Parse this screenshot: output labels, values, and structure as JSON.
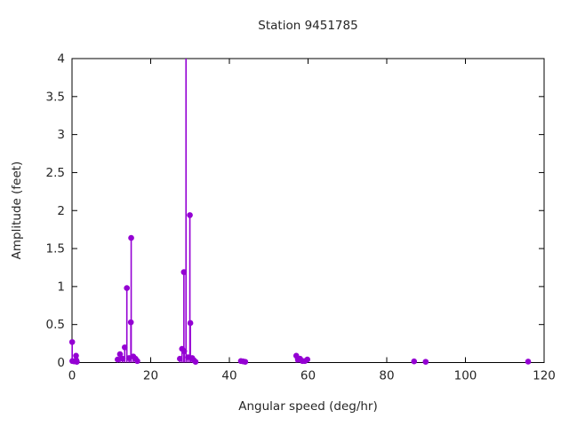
{
  "chart_data": {
    "type": "scatter",
    "style": "impulses-with-points",
    "title": "Station 9451785",
    "xlabel": "Angular speed (deg/hr)",
    "ylabel": "Amplitude (feet)",
    "xlim": [
      0,
      120
    ],
    "ylim": [
      0,
      4
    ],
    "xticks": {
      "values": [
        0,
        20,
        40,
        60,
        80,
        100,
        120
      ],
      "labels": [
        "0",
        "20",
        "40",
        "60",
        "80",
        "100",
        "120"
      ]
    },
    "yticks": {
      "values": [
        0,
        0.5,
        1,
        1.5,
        2,
        2.5,
        3,
        3.5,
        4
      ],
      "labels": [
        "0",
        "0.5",
        "1",
        "1.5",
        "2",
        "2.5",
        "3",
        "3.5",
        "4"
      ]
    },
    "grid": false,
    "legend": "none",
    "colors": {
      "marker": "#9400d3",
      "axis": "#000000",
      "text": "#262626"
    },
    "points": [
      {
        "x": 0.04,
        "y": 0.27
      },
      {
        "x": 0.08,
        "y": 0.02
      },
      {
        "x": 0.54,
        "y": 0.015
      },
      {
        "x": 1.02,
        "y": 0.09
      },
      {
        "x": 1.1,
        "y": 0.03
      },
      {
        "x": 1.22,
        "y": 0.01
      },
      {
        "x": 11.6,
        "y": 0.04
      },
      {
        "x": 12.2,
        "y": 0.11
      },
      {
        "x": 12.85,
        "y": 0.05
      },
      {
        "x": 13.4,
        "y": 0.2
      },
      {
        "x": 13.94,
        "y": 0.98
      },
      {
        "x": 14.5,
        "y": 0.06
      },
      {
        "x": 14.96,
        "y": 0.53
      },
      {
        "x": 15.04,
        "y": 1.64
      },
      {
        "x": 15.58,
        "y": 0.08
      },
      {
        "x": 16.14,
        "y": 0.05
      },
      {
        "x": 16.6,
        "y": 0.02
      },
      {
        "x": 27.42,
        "y": 0.05
      },
      {
        "x": 27.97,
        "y": 0.18
      },
      {
        "x": 28.44,
        "y": 1.19
      },
      {
        "x": 28.51,
        "y": 0.15
      },
      {
        "x": 28.98,
        "y": 4.0,
        "clipped": true
      },
      {
        "x": 29.46,
        "y": 0.07
      },
      {
        "x": 29.96,
        "y": 1.94
      },
      {
        "x": 30.08,
        "y": 0.52
      },
      {
        "x": 30.54,
        "y": 0.06
      },
      {
        "x": 30.98,
        "y": 0.03
      },
      {
        "x": 31.4,
        "y": 0.01
      },
      {
        "x": 42.93,
        "y": 0.02
      },
      {
        "x": 43.48,
        "y": 0.015
      },
      {
        "x": 44.03,
        "y": 0.01
      },
      {
        "x": 57.0,
        "y": 0.09
      },
      {
        "x": 57.42,
        "y": 0.04
      },
      {
        "x": 57.97,
        "y": 0.05
      },
      {
        "x": 58.57,
        "y": 0.02
      },
      {
        "x": 59.18,
        "y": 0.02
      },
      {
        "x": 59.82,
        "y": 0.04
      },
      {
        "x": 86.95,
        "y": 0.015
      },
      {
        "x": 89.9,
        "y": 0.01
      },
      {
        "x": 115.94,
        "y": 0.012
      }
    ]
  }
}
